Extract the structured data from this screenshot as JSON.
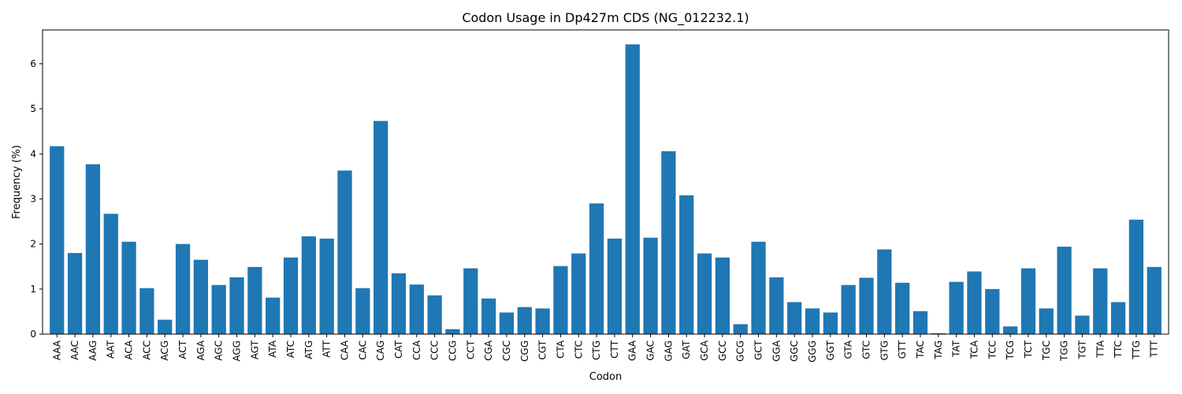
{
  "chart_data": {
    "type": "bar",
    "title": "Codon Usage in Dp427m CDS (NG_012232.1)",
    "xlabel": "Codon",
    "ylabel": "Frequency (%)",
    "ylim": [
      0,
      6.75
    ],
    "yticks": [
      0,
      1,
      2,
      3,
      4,
      5,
      6
    ],
    "grid": false,
    "bar_color": "#1f77b4",
    "categories": [
      "AAA",
      "AAC",
      "AAG",
      "AAT",
      "ACA",
      "ACC",
      "ACG",
      "ACT",
      "AGA",
      "AGC",
      "AGG",
      "AGT",
      "ATA",
      "ATC",
      "ATG",
      "ATT",
      "CAA",
      "CAC",
      "CAG",
      "CAT",
      "CCA",
      "CCC",
      "CCG",
      "CCT",
      "CGA",
      "CGC",
      "CGG",
      "CGT",
      "CTA",
      "CTC",
      "CTG",
      "CTT",
      "GAA",
      "GAC",
      "GAG",
      "GAT",
      "GCA",
      "GCC",
      "GCG",
      "GCT",
      "GGA",
      "GGC",
      "GGG",
      "GGT",
      "GTA",
      "GTC",
      "GTG",
      "GTT",
      "TAC",
      "TAG",
      "TAT",
      "TCA",
      "TCC",
      "TCG",
      "TCT",
      "TGC",
      "TGG",
      "TGT",
      "TTA",
      "TTC",
      "TTG",
      "TTT"
    ],
    "values": [
      4.17,
      1.8,
      3.77,
      2.67,
      2.05,
      1.02,
      0.32,
      2.0,
      1.65,
      1.09,
      1.26,
      1.49,
      0.81,
      1.7,
      2.17,
      2.12,
      3.63,
      1.02,
      4.73,
      1.35,
      1.1,
      0.86,
      0.11,
      1.46,
      0.79,
      0.48,
      0.6,
      0.57,
      1.51,
      1.79,
      2.9,
      2.12,
      6.43,
      2.14,
      4.06,
      3.08,
      1.79,
      1.7,
      0.22,
      2.05,
      1.26,
      0.71,
      0.57,
      0.48,
      1.09,
      1.25,
      1.88,
      1.14,
      0.51,
      0.02,
      1.16,
      1.39,
      1.0,
      0.17,
      1.46,
      0.57,
      1.94,
      0.41,
      1.46,
      0.71,
      2.54,
      1.49
    ]
  }
}
